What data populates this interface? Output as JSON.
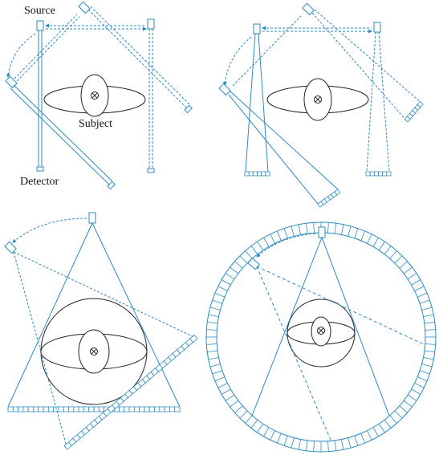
{
  "labels": {
    "source": "Source",
    "subject": "Subject",
    "detector": "Detector"
  },
  "panels": [
    {
      "id": "first-generation"
    },
    {
      "id": "second-generation"
    },
    {
      "id": "third-generation"
    },
    {
      "id": "fourth-generation"
    }
  ],
  "colors": {
    "beam": "#2a8ac2",
    "subject": "#222222",
    "background": "#ffffff"
  },
  "icons": [
    "source-tube-icon",
    "detector-array-icon",
    "rotation-arrow-icon",
    "axis-cross-icon"
  ]
}
